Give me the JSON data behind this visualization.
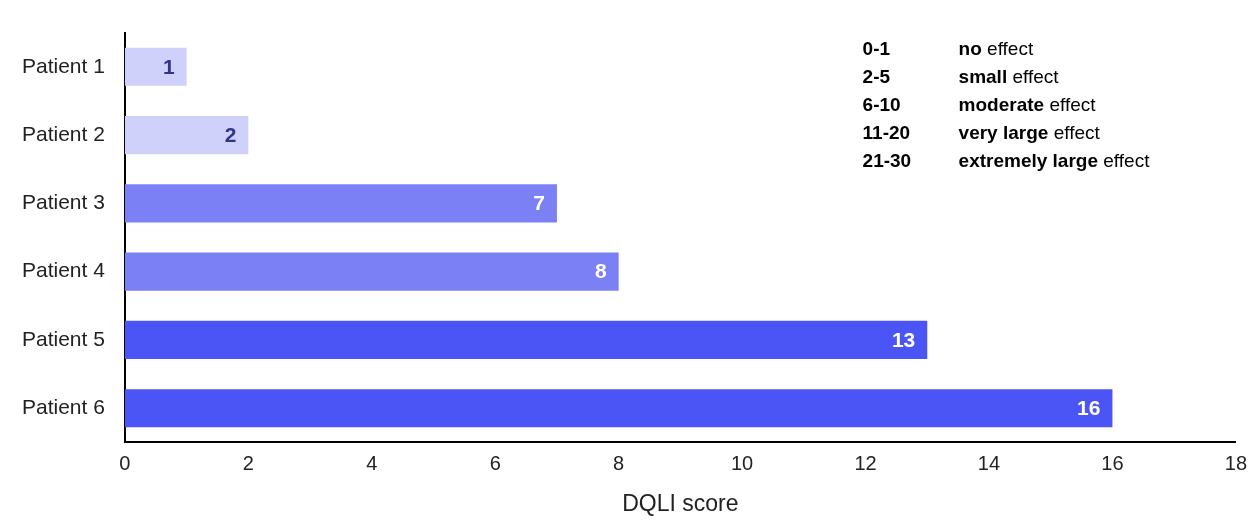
{
  "chart_data": {
    "type": "bar",
    "orientation": "horizontal",
    "categories": [
      "Patient 1",
      "Patient 2",
      "Patient 3",
      "Patient 4",
      "Patient 5",
      "Patient 6"
    ],
    "values": [
      1,
      2,
      7,
      8,
      13,
      16
    ],
    "colors": [
      "#d0d1fa",
      "#d0d1fa",
      "#7b80f5",
      "#7b80f5",
      "#4b55f5",
      "#4b55f5"
    ],
    "xlabel": "DQLI score",
    "xlim": [
      0,
      18
    ],
    "xticks": [
      0,
      2,
      4,
      6,
      8,
      10,
      12,
      14,
      16,
      18
    ],
    "grid": false,
    "legend": false,
    "data_labels": true,
    "annotations": [
      "0-1",
      "no effect",
      "2-5",
      "small effect",
      "6-10",
      "moderate effect",
      "11-20",
      "very large effect",
      "21-30",
      "extremely large effect"
    ]
  }
}
